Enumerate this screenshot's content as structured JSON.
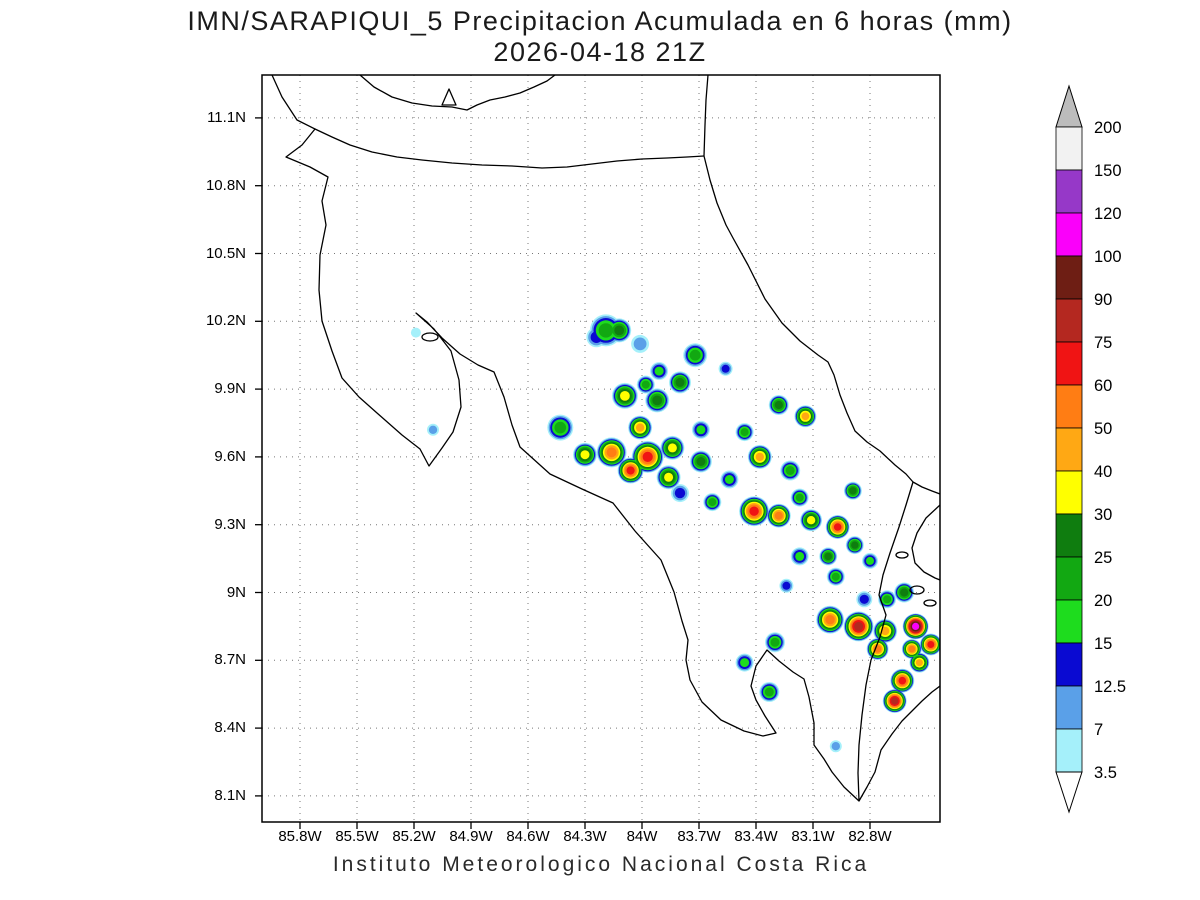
{
  "title": {
    "line1": "IMN/SARAPIQUI_5 Precipitacion Acumulada en 6 horas (mm)",
    "line2": "2026-04-18 21Z"
  },
  "caption": "Instituto Meteorologico Nacional Costa Rica",
  "axes": {
    "lat_ticks": [
      "11.1N",
      "10.8N",
      "10.5N",
      "10.2N",
      "9.9N",
      "9.6N",
      "9.3N",
      "9N",
      "8.7N",
      "8.4N",
      "8.1N"
    ],
    "lon_ticks": [
      "85.8W",
      "85.5W",
      "85.2W",
      "84.9W",
      "84.6W",
      "84.3W",
      "84W",
      "83.7W",
      "83.4W",
      "83.1W",
      "82.8W"
    ]
  },
  "colorbar": {
    "labels": [
      "200",
      "150",
      "120",
      "100",
      "90",
      "75",
      "60",
      "50",
      "40",
      "30",
      "25",
      "20",
      "15",
      "12.5",
      "7",
      "3.5"
    ],
    "segment_colors": [
      "#f2f2f2",
      "#9638c8",
      "#fa00fa",
      "#6e1e14",
      "#b42820",
      "#f01414",
      "#ff7d14",
      "#ffa814",
      "#ffff00",
      "#0f7d0f",
      "#12a812",
      "#1edc1e",
      "#0a0ad2",
      "#5aa0e8",
      "#a5f0fa"
    ],
    "arrow_top_color": "#bcbcbc",
    "arrow_bottom_color": "#ffffff"
  },
  "chart_data": {
    "type": "heatmap",
    "title": "IMN/SARAPIQUI_5 Precipitacion Acumulada en 6 horas (mm) 2026-04-18 21Z",
    "units": "mm",
    "lon_range_W": [
      86.0,
      82.43
    ],
    "lat_range_N": [
      7.99,
      11.29
    ],
    "levels_mm": [
      3.5,
      7,
      12.5,
      15,
      20,
      25,
      30,
      40,
      50,
      60,
      75,
      90,
      100,
      120,
      150,
      200
    ],
    "cells_format": "[lon_W, lat_N, max_level_mm, radius_px]",
    "cells": [
      [
        84.19,
        10.16,
        20,
        16
      ],
      [
        84.01,
        10.1,
        7,
        9
      ],
      [
        83.72,
        10.05,
        20,
        12
      ],
      [
        83.8,
        9.93,
        25,
        11
      ],
      [
        84.09,
        9.87,
        30,
        13
      ],
      [
        83.92,
        9.85,
        25,
        12
      ],
      [
        84.43,
        9.73,
        20,
        13
      ],
      [
        84.16,
        9.62,
        50,
        15
      ],
      [
        83.97,
        9.6,
        60,
        16
      ],
      [
        84.06,
        9.54,
        60,
        13
      ],
      [
        83.86,
        9.51,
        30,
        12
      ],
      [
        83.69,
        9.58,
        25,
        11
      ],
      [
        83.46,
        9.71,
        20,
        9
      ],
      [
        83.28,
        9.83,
        25,
        10
      ],
      [
        83.14,
        9.78,
        40,
        11
      ],
      [
        83.38,
        9.6,
        40,
        12
      ],
      [
        83.22,
        9.54,
        20,
        10
      ],
      [
        83.41,
        9.36,
        60,
        15
      ],
      [
        83.28,
        9.34,
        50,
        12
      ],
      [
        83.11,
        9.32,
        30,
        11
      ],
      [
        82.97,
        9.29,
        60,
        12
      ],
      [
        82.88,
        9.21,
        25,
        9
      ],
      [
        83.17,
        9.16,
        15,
        9
      ],
      [
        82.98,
        9.07,
        20,
        9
      ],
      [
        83.24,
        9.03,
        12.5,
        7
      ],
      [
        82.8,
        9.14,
        15,
        8
      ],
      [
        82.62,
        9.0,
        25,
        10
      ],
      [
        82.83,
        8.97,
        12.5,
        8
      ],
      [
        83.01,
        8.88,
        50,
        14
      ],
      [
        82.86,
        8.85,
        75,
        15
      ],
      [
        82.72,
        8.83,
        40,
        12
      ],
      [
        82.56,
        8.85,
        100,
        13
      ],
      [
        82.48,
        8.77,
        60,
        11
      ],
      [
        83.3,
        8.78,
        20,
        10
      ],
      [
        83.46,
        8.69,
        15,
        9
      ],
      [
        83.33,
        8.56,
        20,
        10
      ],
      [
        82.63,
        8.61,
        60,
        12
      ],
      [
        82.67,
        8.52,
        75,
        12
      ],
      [
        82.54,
        8.69,
        40,
        10
      ],
      [
        82.98,
        8.32,
        7,
        6
      ],
      [
        85.19,
        10.15,
        3.5,
        5
      ],
      [
        85.1,
        9.72,
        7,
        6
      ],
      [
        84.24,
        10.13,
        12.5,
        10
      ],
      [
        84.3,
        9.61,
        30,
        12
      ],
      [
        83.8,
        9.44,
        12.5,
        9
      ],
      [
        83.63,
        9.4,
        20,
        9
      ],
      [
        83.56,
        9.99,
        12.5,
        7
      ],
      [
        82.89,
        9.45,
        25,
        9
      ],
      [
        84.01,
        9.73,
        40,
        12
      ],
      [
        83.69,
        9.72,
        15,
        9
      ],
      [
        83.84,
        9.64,
        30,
        12
      ],
      [
        83.54,
        9.5,
        15,
        9
      ],
      [
        83.17,
        9.42,
        20,
        9
      ],
      [
        83.02,
        9.16,
        25,
        9
      ],
      [
        82.76,
        8.75,
        50,
        11
      ],
      [
        82.58,
        8.75,
        50,
        10
      ],
      [
        82.71,
        8.97,
        20,
        9
      ],
      [
        84.12,
        10.16,
        25,
        12
      ],
      [
        83.91,
        9.98,
        15,
        9
      ],
      [
        83.98,
        9.92,
        20,
        9
      ]
    ]
  }
}
